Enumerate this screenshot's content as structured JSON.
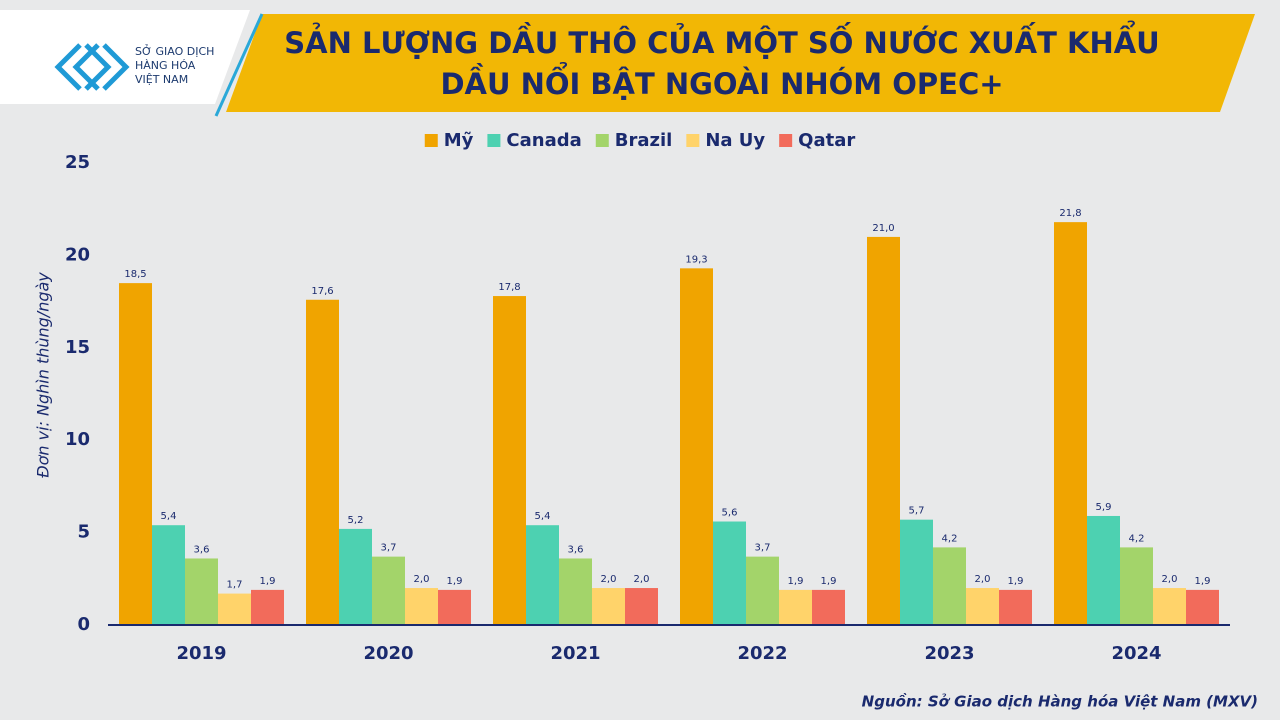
{
  "logo": [
    "SỞ GIAO DỊCH",
    "HÀNG HÓA",
    "VIỆT NAM"
  ],
  "chart_data": {
    "type": "bar",
    "title": [
      "SẢN LƯỢNG DẦU THÔ CỦA MỘT SỐ NƯỚC XUẤT KHẨU",
      "DẦU NỔI BẬT NGOÀI NHÓM OPEC+"
    ],
    "y_label": "Đơn vị: Nghìn thùng/ngày",
    "source": "Nguồn: Sở Giao dịch Hàng hóa Việt Nam (MXV)",
    "categories": [
      "2019",
      "2020",
      "2021",
      "2022",
      "2023",
      "2024"
    ],
    "series": [
      {
        "name": "Mỹ",
        "color": "#f0a400",
        "values": [
          18.5,
          17.6,
          17.8,
          19.3,
          21.0,
          21.8
        ],
        "value_labels": [
          "18,5",
          "17,6",
          "17,8",
          "19,3",
          "21,0",
          "21,8"
        ]
      },
      {
        "name": "Canada",
        "color": "#4dd1b1",
        "values": [
          5.4,
          5.2,
          5.4,
          5.6,
          5.7,
          5.9
        ],
        "value_labels": [
          "5,4",
          "5,2",
          "5,4",
          "5,6",
          "5,7",
          "5,9"
        ]
      },
      {
        "name": "Brazil",
        "color": "#a3d46a",
        "values": [
          3.6,
          3.7,
          3.6,
          3.7,
          4.2,
          4.2
        ],
        "value_labels": [
          "3,6",
          "3,7",
          "3,6",
          "3,7",
          "4,2",
          "4,2"
        ]
      },
      {
        "name": "Na Uy",
        "color": "#ffd36a",
        "values": [
          1.7,
          2.0,
          2.0,
          1.9,
          2.0,
          2.0
        ],
        "value_labels": [
          "1,7",
          "2,0",
          "2,0",
          "1,9",
          "2,0",
          "2,0"
        ]
      },
      {
        "name": "Qatar",
        "color": "#f26b5b",
        "values": [
          1.9,
          1.9,
          2.0,
          1.9,
          1.9,
          1.9
        ],
        "value_labels": [
          "1,9",
          "1,9",
          "2,0",
          "1,9",
          "1,9",
          "1,9"
        ]
      }
    ],
    "ylim": [
      0,
      25
    ],
    "yticks": [
      0,
      5,
      10,
      15,
      20,
      25
    ],
    "grid": false,
    "legend": "top"
  }
}
